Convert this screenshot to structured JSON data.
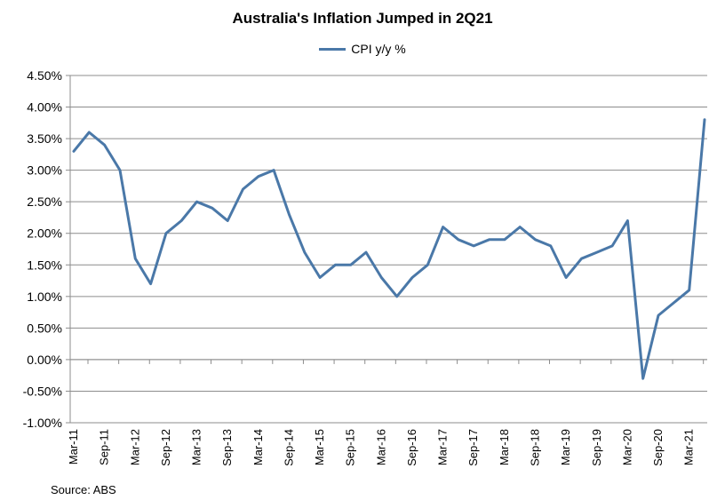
{
  "chart_data": {
    "type": "line",
    "title": "Australia's Inflation Jumped in 2Q21",
    "xlabel": "",
    "ylabel": "",
    "ylim": [
      -1.0,
      4.5
    ],
    "y_step": 0.5,
    "y_tick_labels": [
      "4.50%",
      "4.00%",
      "3.50%",
      "3.00%",
      "2.50%",
      "2.00%",
      "1.50%",
      "1.00%",
      "0.50%",
      "0.00%",
      "-0.50%",
      "-1.00%"
    ],
    "x_tick_labels": [
      "Mar-11",
      "Sep-11",
      "Mar-12",
      "Sep-12",
      "Mar-13",
      "Sep-13",
      "Mar-14",
      "Sep-14",
      "Mar-15",
      "Sep-15",
      "Mar-16",
      "Sep-16",
      "Mar-17",
      "Sep-17",
      "Mar-18",
      "Sep-18",
      "Mar-19",
      "Sep-19",
      "Mar-20",
      "Sep-20",
      "Mar-21"
    ],
    "grid": true,
    "legend_position": "top-center",
    "color": "#4a78a8",
    "categories": [
      "Mar-11",
      "Jun-11",
      "Sep-11",
      "Dec-11",
      "Mar-12",
      "Jun-12",
      "Sep-12",
      "Dec-12",
      "Mar-13",
      "Jun-13",
      "Sep-13",
      "Dec-13",
      "Mar-14",
      "Jun-14",
      "Sep-14",
      "Dec-14",
      "Mar-15",
      "Jun-15",
      "Sep-15",
      "Dec-15",
      "Mar-16",
      "Jun-16",
      "Sep-16",
      "Dec-16",
      "Mar-17",
      "Jun-17",
      "Sep-17",
      "Dec-17",
      "Mar-18",
      "Jun-18",
      "Sep-18",
      "Dec-18",
      "Mar-19",
      "Jun-19",
      "Sep-19",
      "Dec-19",
      "Mar-20",
      "Jun-20",
      "Sep-20",
      "Dec-20",
      "Mar-21",
      "Jun-21"
    ],
    "series": [
      {
        "name": "CPI y/y %",
        "values": [
          3.3,
          3.6,
          3.4,
          3.0,
          1.6,
          1.2,
          2.0,
          2.2,
          2.5,
          2.4,
          2.2,
          2.7,
          2.9,
          3.0,
          2.3,
          1.7,
          1.3,
          1.5,
          1.5,
          1.7,
          1.3,
          1.0,
          1.3,
          1.5,
          2.1,
          1.9,
          1.8,
          1.9,
          1.9,
          2.1,
          1.9,
          1.8,
          1.3,
          1.6,
          1.7,
          1.8,
          2.2,
          -0.3,
          0.7,
          0.9,
          1.1,
          3.8
        ]
      }
    ]
  },
  "source_note": "Source: ABS"
}
